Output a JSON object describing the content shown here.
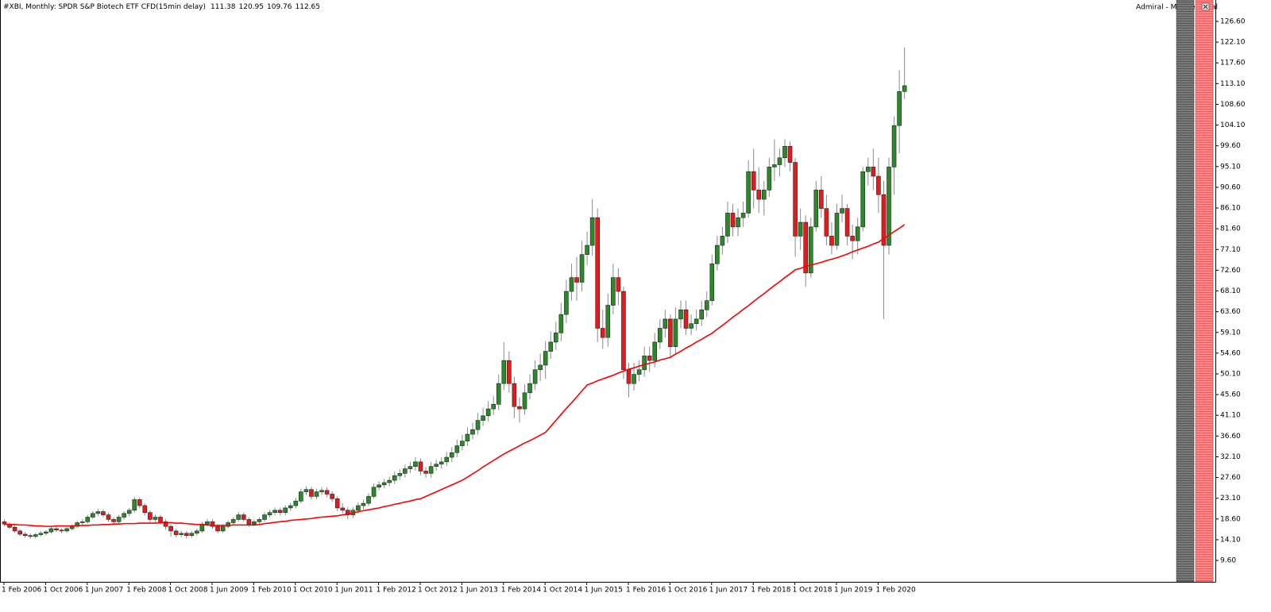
{
  "chart_data": {
    "type": "candlestick",
    "title": "#XBI, Monthly:  SPDR S&P Biotech ETF CFD(15min delay)",
    "panel_title": "Admiral - Mini Terminal",
    "categories": [
      "1 Feb 2006",
      null,
      null,
      null,
      null,
      null,
      null,
      null,
      "1 Oct 2006",
      null,
      null,
      null,
      null,
      null,
      null,
      null,
      "1 Jun 2007",
      null,
      null,
      null,
      null,
      null,
      null,
      null,
      "1 Feb 2008",
      null,
      null,
      null,
      null,
      null,
      null,
      null,
      "1 Oct 2008",
      null,
      null,
      null,
      null,
      null,
      null,
      null,
      "1 Jun 2009",
      null,
      null,
      null,
      null,
      null,
      null,
      null,
      "1 Feb 2010",
      null,
      null,
      null,
      null,
      null,
      null,
      null,
      "1 Oct 2010",
      null,
      null,
      null,
      null,
      null,
      null,
      null,
      "1 Jun 2011",
      null,
      null,
      null,
      null,
      null,
      null,
      null,
      "1 Feb 2012",
      null,
      null,
      null,
      null,
      null,
      null,
      null,
      "1 Oct 2012",
      null,
      null,
      null,
      null,
      null,
      null,
      null,
      "1 Jun 2013",
      null,
      null,
      null,
      null,
      null,
      null,
      null,
      "1 Feb 2014",
      null,
      null,
      null,
      null,
      null,
      null,
      null,
      "1 Oct 2014",
      null,
      null,
      null,
      null,
      null,
      null,
      null,
      "1 Jun 2015",
      null,
      null,
      null,
      null,
      null,
      null,
      null,
      "1 Feb 2016",
      null,
      null,
      null,
      null,
      null,
      null,
      null,
      "1 Oct 2016",
      null,
      null,
      null,
      null,
      null,
      null,
      null,
      "1 Jun 2017",
      null,
      null,
      null,
      null,
      null,
      null,
      null,
      "1 Feb 2018",
      null,
      null,
      null,
      null,
      null,
      null,
      null,
      "1 Oct 2018",
      null,
      null,
      null,
      null,
      null,
      null,
      null,
      "1 Jun 2019",
      null,
      null,
      null,
      null,
      null,
      null,
      null,
      "1 Feb 2020",
      null,
      null,
      null,
      null,
      null
    ],
    "candles": [
      [
        18.0,
        18.5,
        17.0,
        17.5
      ],
      [
        17.5,
        17.9,
        16.4,
        16.8
      ],
      [
        16.8,
        17.2,
        15.6,
        16.0
      ],
      [
        16.0,
        16.4,
        14.9,
        15.3
      ],
      [
        15.3,
        15.8,
        14.5,
        15.0
      ],
      [
        15.0,
        15.5,
        14.3,
        14.8
      ],
      [
        14.8,
        15.6,
        14.4,
        15.2
      ],
      [
        15.2,
        16.0,
        14.8,
        15.5
      ],
      [
        15.5,
        16.2,
        15.0,
        15.8
      ],
      [
        15.8,
        16.9,
        15.4,
        16.5
      ],
      [
        16.5,
        16.9,
        15.8,
        16.2
      ],
      [
        16.2,
        16.6,
        15.5,
        16.0
      ],
      [
        16.0,
        16.9,
        15.6,
        16.5
      ],
      [
        16.5,
        17.4,
        16.1,
        17.0
      ],
      [
        17.0,
        18.2,
        16.6,
        17.8
      ],
      [
        17.8,
        18.6,
        17.3,
        18.0
      ],
      [
        18.0,
        19.5,
        17.6,
        19.0
      ],
      [
        19.0,
        20.3,
        18.6,
        19.8
      ],
      [
        19.8,
        20.8,
        19.2,
        20.2
      ],
      [
        20.2,
        20.7,
        19.0,
        19.5
      ],
      [
        19.5,
        20.0,
        18.0,
        18.5
      ],
      [
        18.5,
        19.0,
        17.4,
        18.0
      ],
      [
        18.0,
        19.5,
        17.6,
        19.0
      ],
      [
        19.0,
        20.3,
        18.5,
        19.8
      ],
      [
        19.8,
        21.0,
        19.2,
        20.5
      ],
      [
        20.5,
        23.4,
        20.0,
        22.8
      ],
      [
        22.8,
        23.3,
        20.9,
        21.5
      ],
      [
        21.5,
        22.0,
        19.4,
        20.0
      ],
      [
        20.0,
        20.5,
        17.9,
        18.5
      ],
      [
        18.5,
        19.6,
        17.9,
        19.0
      ],
      [
        19.0,
        19.5,
        17.4,
        18.0
      ],
      [
        18.0,
        18.6,
        16.3,
        17.0
      ],
      [
        17.0,
        17.5,
        14.8,
        16.0
      ],
      [
        16.0,
        16.5,
        14.6,
        15.2
      ],
      [
        15.2,
        16.1,
        14.7,
        15.5
      ],
      [
        15.5,
        16.0,
        14.4,
        15.0
      ],
      [
        15.0,
        16.0,
        14.5,
        15.5
      ],
      [
        15.5,
        16.5,
        15.0,
        16.0
      ],
      [
        16.0,
        18.0,
        15.6,
        17.5
      ],
      [
        17.5,
        18.6,
        17.0,
        18.0
      ],
      [
        18.0,
        18.5,
        16.5,
        17.0
      ],
      [
        17.0,
        17.5,
        15.5,
        16.0
      ],
      [
        16.0,
        17.5,
        15.6,
        17.0
      ],
      [
        17.0,
        18.3,
        16.6,
        17.8
      ],
      [
        17.8,
        19.0,
        17.3,
        18.5
      ],
      [
        18.5,
        20.1,
        18.0,
        19.5
      ],
      [
        19.5,
        20.0,
        18.0,
        18.5
      ],
      [
        18.5,
        19.0,
        16.9,
        17.5
      ],
      [
        17.5,
        18.5,
        17.0,
        18.0
      ],
      [
        18.0,
        19.0,
        17.5,
        18.5
      ],
      [
        18.5,
        20.1,
        18.0,
        19.5
      ],
      [
        19.5,
        20.6,
        18.9,
        20.0
      ],
      [
        20.0,
        21.1,
        19.4,
        20.5
      ],
      [
        20.5,
        21.1,
        19.4,
        20.0
      ],
      [
        20.0,
        21.6,
        19.4,
        21.0
      ],
      [
        21.0,
        22.1,
        20.4,
        21.5
      ],
      [
        21.5,
        23.2,
        20.9,
        22.5
      ],
      [
        22.5,
        25.2,
        22.0,
        24.5
      ],
      [
        24.5,
        25.7,
        23.8,
        25.0
      ],
      [
        25.0,
        25.6,
        22.8,
        23.5
      ],
      [
        23.5,
        25.2,
        22.9,
        24.5
      ],
      [
        24.5,
        25.5,
        23.8,
        24.8
      ],
      [
        24.8,
        25.5,
        23.3,
        24.0
      ],
      [
        24.0,
        24.6,
        22.3,
        23.0
      ],
      [
        23.0,
        23.6,
        20.3,
        21.0
      ],
      [
        21.0,
        22.0,
        19.8,
        20.5
      ],
      [
        20.5,
        21.2,
        18.6,
        19.5
      ],
      [
        19.5,
        21.2,
        18.8,
        20.5
      ],
      [
        20.5,
        22.2,
        19.8,
        21.5
      ],
      [
        21.5,
        22.8,
        20.7,
        22.0
      ],
      [
        22.0,
        24.2,
        21.4,
        23.5
      ],
      [
        23.5,
        26.3,
        23.0,
        25.5
      ],
      [
        25.5,
        26.8,
        24.8,
        26.0
      ],
      [
        26.0,
        27.3,
        25.3,
        26.5
      ],
      [
        26.5,
        27.8,
        25.7,
        27.0
      ],
      [
        27.0,
        28.9,
        26.2,
        28.0
      ],
      [
        28.0,
        29.4,
        27.1,
        28.5
      ],
      [
        28.5,
        30.4,
        27.6,
        29.5
      ],
      [
        29.5,
        30.9,
        28.6,
        30.0
      ],
      [
        30.0,
        32.0,
        29.1,
        31.0
      ],
      [
        31.0,
        31.8,
        28.1,
        29.0
      ],
      [
        29.0,
        29.9,
        27.6,
        28.5
      ],
      [
        28.5,
        31.0,
        27.6,
        30.0
      ],
      [
        30.0,
        31.5,
        29.1,
        30.5
      ],
      [
        30.5,
        32.0,
        29.6,
        31.0
      ],
      [
        31.0,
        33.1,
        30.1,
        32.0
      ],
      [
        32.0,
        34.2,
        31.0,
        33.0
      ],
      [
        33.0,
        35.8,
        32.0,
        34.5
      ],
      [
        34.5,
        36.9,
        33.5,
        35.5
      ],
      [
        35.5,
        38.5,
        34.4,
        37.0
      ],
      [
        37.0,
        39.5,
        35.9,
        38.0
      ],
      [
        38.0,
        41.6,
        36.9,
        40.0
      ],
      [
        40.0,
        42.7,
        38.8,
        41.0
      ],
      [
        41.0,
        44.2,
        39.8,
        42.5
      ],
      [
        42.5,
        45.3,
        41.2,
        43.5
      ],
      [
        43.5,
        50.0,
        42.2,
        48.0
      ],
      [
        48.0,
        57.0,
        46.6,
        53.0
      ],
      [
        53.0,
        55.0,
        46.0,
        48.0
      ],
      [
        48.0,
        49.5,
        40.5,
        43.0
      ],
      [
        43.0,
        45.0,
        39.5,
        42.5
      ],
      [
        42.5,
        47.8,
        41.2,
        46.0
      ],
      [
        46.0,
        50.0,
        44.6,
        48.0
      ],
      [
        48.0,
        53.0,
        46.6,
        51.0
      ],
      [
        51.0,
        54.5,
        48.5,
        52.0
      ],
      [
        52.0,
        57.2,
        49.0,
        55.0
      ],
      [
        55.0,
        59.3,
        53.4,
        57.0
      ],
      [
        57.0,
        61.4,
        55.3,
        59.0
      ],
      [
        59.0,
        65.5,
        57.2,
        63.0
      ],
      [
        63.0,
        70.5,
        61.1,
        68.0
      ],
      [
        68.0,
        74.0,
        66.0,
        71.0
      ],
      [
        71.0,
        75.5,
        66.0,
        70.0
      ],
      [
        70.0,
        79.0,
        68.0,
        76.0
      ],
      [
        76.0,
        81.0,
        73.7,
        78.0
      ],
      [
        78.0,
        88.0,
        75.7,
        84.0
      ],
      [
        84.0,
        86.0,
        57.0,
        60.0
      ],
      [
        60.0,
        64.0,
        55.5,
        58.0
      ],
      [
        58.0,
        67.5,
        56.0,
        65.0
      ],
      [
        65.0,
        74.0,
        63.0,
        71.0
      ],
      [
        71.0,
        73.0,
        65.0,
        68.0
      ],
      [
        68.0,
        69.0,
        49.0,
        51.0
      ],
      [
        51.0,
        52.5,
        45.0,
        48.0
      ],
      [
        48.0,
        52.5,
        46.5,
        50.0
      ],
      [
        50.0,
        53.0,
        48.5,
        51.0
      ],
      [
        51.0,
        56.0,
        49.5,
        54.0
      ],
      [
        54.0,
        56.0,
        50.5,
        53.0
      ],
      [
        53.0,
        59.0,
        51.5,
        57.0
      ],
      [
        57.0,
        62.0,
        55.5,
        60.0
      ],
      [
        60.0,
        64.0,
        58.0,
        62.0
      ],
      [
        62.0,
        63.0,
        53.5,
        56.0
      ],
      [
        56.0,
        64.5,
        54.5,
        62.0
      ],
      [
        62.0,
        66.0,
        60.0,
        64.0
      ],
      [
        64.0,
        66.0,
        58.5,
        60.0
      ],
      [
        60.0,
        63.0,
        58.5,
        61.0
      ],
      [
        61.0,
        64.0,
        59.5,
        62.0
      ],
      [
        62.0,
        66.0,
        60.5,
        64.0
      ],
      [
        64.0,
        68.0,
        62.5,
        66.0
      ],
      [
        66.0,
        76.0,
        65.0,
        74.0
      ],
      [
        74.0,
        80.0,
        72.5,
        78.0
      ],
      [
        78.0,
        82.0,
        76.0,
        80.0
      ],
      [
        80.0,
        87.5,
        78.5,
        85.0
      ],
      [
        85.0,
        87.0,
        80.0,
        82.0
      ],
      [
        82.0,
        86.0,
        80.0,
        84.0
      ],
      [
        84.0,
        87.5,
        82.0,
        85.0
      ],
      [
        85.0,
        96.5,
        84.0,
        94.0
      ],
      [
        94.0,
        99.0,
        86.0,
        90.0
      ],
      [
        90.0,
        95.0,
        85.0,
        88.0
      ],
      [
        88.0,
        92.0,
        84.5,
        90.0
      ],
      [
        90.0,
        97.0,
        88.5,
        95.0
      ],
      [
        95.0,
        101.0,
        92.0,
        95.5
      ],
      [
        95.5,
        99.0,
        93.0,
        97.0
      ],
      [
        97.0,
        101.0,
        95.0,
        99.5
      ],
      [
        99.5,
        100.5,
        94.0,
        96.0
      ],
      [
        96.0,
        97.0,
        75.5,
        80.0
      ],
      [
        80.0,
        86.0,
        77.0,
        83.0
      ],
      [
        83.0,
        84.5,
        69.0,
        72.0
      ],
      [
        72.0,
        84.0,
        71.0,
        82.0
      ],
      [
        82.0,
        92.0,
        81.0,
        90.0
      ],
      [
        90.0,
        93.0,
        84.0,
        86.0
      ],
      [
        86.0,
        89.0,
        78.0,
        80.0
      ],
      [
        80.0,
        83.0,
        76.0,
        78.0
      ],
      [
        78.0,
        87.0,
        77.0,
        85.0
      ],
      [
        85.0,
        89.0,
        83.0,
        86.0
      ],
      [
        86.0,
        87.0,
        78.0,
        80.0
      ],
      [
        80.0,
        82.5,
        75.0,
        79.0
      ],
      [
        79.0,
        84.0,
        76.0,
        82.0
      ],
      [
        82.0,
        95.0,
        81.0,
        94.0
      ],
      [
        94.0,
        97.0,
        91.0,
        95.0
      ],
      [
        95.0,
        99.0,
        90.0,
        93.0
      ],
      [
        93.0,
        97.0,
        85.0,
        89.0
      ],
      [
        89.0,
        92.0,
        62.0,
        78.0
      ],
      [
        78.0,
        97.0,
        76.0,
        95.0
      ],
      [
        95.0,
        106.0,
        89.0,
        104.0
      ],
      [
        104.0,
        116.0,
        98.0,
        111.38
      ],
      [
        111.38,
        120.95,
        109.76,
        112.65
      ]
    ],
    "up_color": "#2a8a2a",
    "down_color": "#e8191c",
    "moving_average": {
      "color": "#ff0000",
      "values": [
        17.5,
        17.4,
        17.4,
        17.3,
        17.3,
        17.2,
        17.1,
        17.1,
        17.0,
        17.0,
        17.1,
        17.1,
        17.1,
        17.1,
        17.2,
        17.2,
        17.2,
        17.3,
        17.3,
        17.4,
        17.4,
        17.5,
        17.5,
        17.6,
        17.6,
        17.6,
        17.7,
        17.7,
        17.7,
        17.7,
        17.8,
        17.8,
        17.8,
        17.7,
        17.7,
        17.6,
        17.5,
        17.4,
        17.4,
        17.3,
        17.2,
        17.2,
        17.2,
        17.2,
        17.3,
        17.3,
        17.3,
        17.3,
        17.3,
        17.4,
        17.6,
        17.7,
        17.9,
        18.0,
        18.1,
        18.3,
        18.4,
        18.5,
        18.6,
        18.7,
        18.9,
        19.0,
        19.1,
        19.2,
        19.3,
        19.5,
        19.7,
        19.9,
        20.2,
        20.4,
        20.6,
        20.8,
        21.0,
        21.3,
        21.5,
        21.8,
        22.0,
        22.3,
        22.5,
        22.8,
        23.0,
        23.5,
        24.0,
        24.5,
        25.0,
        25.5,
        26.0,
        26.5,
        27.0,
        27.7,
        28.4,
        29.1,
        29.9,
        30.6,
        31.3,
        32.0,
        32.7,
        33.3,
        33.9,
        34.5,
        35.1,
        35.6,
        36.2,
        36.8,
        37.4,
        38.7,
        40.0,
        41.3,
        42.6,
        43.8,
        45.1,
        46.4,
        47.7,
        48.1,
        48.6,
        49.0,
        49.4,
        49.8,
        50.3,
        50.7,
        51.1,
        51.4,
        51.8,
        52.1,
        52.4,
        52.7,
        53.1,
        53.4,
        53.7,
        54.4,
        55.0,
        55.7,
        56.3,
        57.0,
        57.6,
        58.3,
        58.9,
        59.8,
        60.6,
        61.5,
        62.4,
        63.2,
        64.1,
        64.9,
        65.8,
        66.7,
        67.5,
        68.4,
        69.3,
        70.1,
        71.0,
        71.8,
        72.7,
        73.0,
        73.4,
        73.7,
        74.0,
        74.3,
        74.7,
        75.0,
        75.3,
        75.7,
        76.1,
        76.6,
        77.0,
        77.4,
        77.8,
        78.3,
        78.7,
        79.5,
        80.2,
        81.0,
        81.7,
        82.5
      ]
    },
    "ylim": [
      4.96,
      131.25
    ],
    "yticks": [
      {
        "value": 126.6,
        "label": "126.60"
      },
      {
        "value": 122.1,
        "label": "122.10"
      },
      {
        "value": 117.6,
        "label": "117.60"
      },
      {
        "value": 113.1,
        "label": "113.10"
      },
      {
        "value": 108.6,
        "label": "108.60"
      },
      {
        "value": 104.1,
        "label": "104.10"
      },
      {
        "value": 99.6,
        "label": "99.60"
      },
      {
        "value": 95.1,
        "label": "95.10"
      },
      {
        "value": 90.6,
        "label": "90.60"
      },
      {
        "value": 86.1,
        "label": "86.10"
      },
      {
        "value": 81.6,
        "label": "81.60"
      },
      {
        "value": 77.1,
        "label": "77.10"
      },
      {
        "value": 72.6,
        "label": "72.60"
      },
      {
        "value": 68.1,
        "label": "68.10"
      },
      {
        "value": 63.6,
        "label": "63.60"
      },
      {
        "value": 59.1,
        "label": "59.10"
      },
      {
        "value": 54.6,
        "label": "54.60"
      },
      {
        "value": 50.1,
        "label": "50.10"
      },
      {
        "value": 45.6,
        "label": "45.60"
      },
      {
        "value": 41.1,
        "label": "41.10"
      },
      {
        "value": 36.6,
        "label": "36.60"
      },
      {
        "value": 32.1,
        "label": "32.10"
      },
      {
        "value": 27.6,
        "label": "27.60"
      },
      {
        "value": 23.1,
        "label": "23.10"
      },
      {
        "value": 18.6,
        "label": "18.60"
      },
      {
        "value": 14.1,
        "label": "14.10"
      },
      {
        "value": 9.6,
        "label": "9.60"
      }
    ],
    "grid": false
  }
}
